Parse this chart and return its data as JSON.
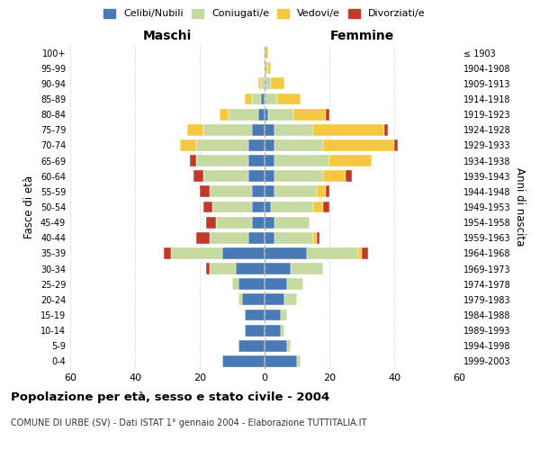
{
  "age_groups": [
    "0-4",
    "5-9",
    "10-14",
    "15-19",
    "20-24",
    "25-29",
    "30-34",
    "35-39",
    "40-44",
    "45-49",
    "50-54",
    "55-59",
    "60-64",
    "65-69",
    "70-74",
    "75-79",
    "80-84",
    "85-89",
    "90-94",
    "95-99",
    "100+"
  ],
  "birth_years": [
    "1999-2003",
    "1994-1998",
    "1989-1993",
    "1984-1988",
    "1979-1983",
    "1974-1978",
    "1969-1973",
    "1964-1968",
    "1959-1963",
    "1954-1958",
    "1949-1953",
    "1944-1948",
    "1939-1943",
    "1934-1938",
    "1929-1933",
    "1924-1928",
    "1919-1923",
    "1914-1918",
    "1909-1913",
    "1904-1908",
    "≤ 1903"
  ],
  "colors": {
    "celibi": "#4a7ab5",
    "coniugati": "#c5d9a0",
    "vedovi": "#f5c842",
    "divorziati": "#c0392b"
  },
  "maschi": {
    "celibi": [
      13,
      8,
      6,
      6,
      7,
      8,
      9,
      13,
      5,
      4,
      4,
      4,
      5,
      5,
      5,
      4,
      2,
      1,
      0,
      0,
      0
    ],
    "coniugati": [
      0,
      0,
      0,
      0,
      1,
      2,
      8,
      16,
      12,
      11,
      12,
      13,
      14,
      16,
      16,
      15,
      9,
      3,
      1,
      0,
      0
    ],
    "vedovi": [
      0,
      0,
      0,
      0,
      0,
      0,
      0,
      0,
      0,
      0,
      0,
      0,
      0,
      0,
      5,
      5,
      3,
      2,
      1,
      0,
      0
    ],
    "divorziati": [
      0,
      0,
      0,
      0,
      0,
      0,
      1,
      2,
      4,
      3,
      3,
      3,
      3,
      2,
      0,
      0,
      0,
      0,
      0,
      0,
      0
    ]
  },
  "femmine": {
    "celibi": [
      10,
      7,
      5,
      5,
      6,
      7,
      8,
      13,
      3,
      3,
      2,
      3,
      3,
      3,
      3,
      3,
      1,
      0,
      0,
      0,
      0
    ],
    "coniugati": [
      1,
      1,
      1,
      2,
      4,
      5,
      10,
      16,
      12,
      11,
      13,
      13,
      15,
      17,
      15,
      12,
      8,
      4,
      2,
      1,
      0
    ],
    "vedovi": [
      0,
      0,
      0,
      0,
      0,
      0,
      0,
      1,
      1,
      0,
      3,
      3,
      7,
      13,
      22,
      22,
      10,
      7,
      4,
      1,
      1
    ],
    "divorziati": [
      0,
      0,
      0,
      0,
      0,
      0,
      0,
      2,
      1,
      0,
      2,
      1,
      2,
      0,
      1,
      1,
      1,
      0,
      0,
      0,
      0
    ]
  },
  "xlim": 60,
  "xticks": [
    -60,
    -40,
    -20,
    0,
    20,
    40,
    60
  ],
  "title": "Popolazione per età, sesso e stato civile - 2004",
  "subtitle": "COMUNE DI URBE (SV) - Dati ISTAT 1° gennaio 2004 - Elaborazione TUTTITALIA.IT",
  "xlabel_left": "Maschi",
  "xlabel_right": "Femmine",
  "ylabel_left": "Fasce di età",
  "ylabel_right": "Anni di nascita",
  "legend_labels": [
    "Celibi/Nubili",
    "Coniugati/e",
    "Vedovi/e",
    "Divorziati/e"
  ],
  "bg_color": "#ffffff",
  "grid_color": "#cccccc"
}
